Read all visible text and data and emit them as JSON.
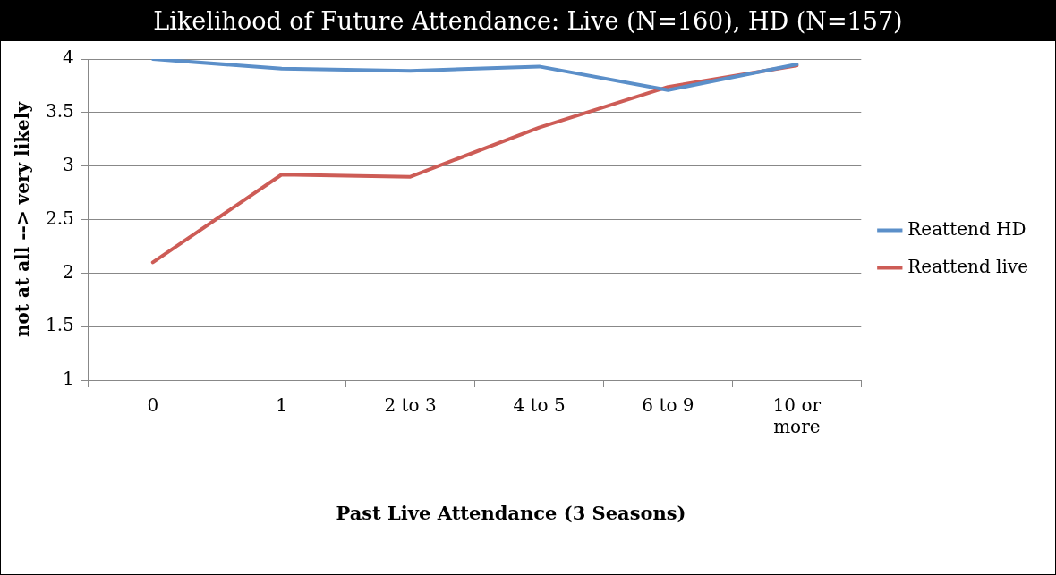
{
  "chart_data": {
    "type": "line",
    "title": "Likelihood of Future Attendance: Live (N=160), HD (N=157)",
    "xlabel": "Past Live Attendance (3 Seasons)",
    "ylabel": "not at all --> very likely",
    "categories": [
      "0",
      "1",
      "2 to 3",
      "4 to 5",
      "6 to 9",
      "10 or more"
    ],
    "series": [
      {
        "name": "Reattend HD",
        "color": "#5b8fc9",
        "values": [
          4.0,
          3.91,
          3.89,
          3.93,
          3.71,
          3.95
        ]
      },
      {
        "name": "Reattend live",
        "color": "#cd5c56",
        "values": [
          2.1,
          2.92,
          2.9,
          3.36,
          3.74,
          3.94
        ]
      }
    ],
    "ylim": [
      1,
      4
    ],
    "yticks": [
      1,
      1.5,
      2,
      2.5,
      3,
      3.5,
      4
    ],
    "grid": "y",
    "legend": "right",
    "marker": "none",
    "line_style": "solid"
  }
}
